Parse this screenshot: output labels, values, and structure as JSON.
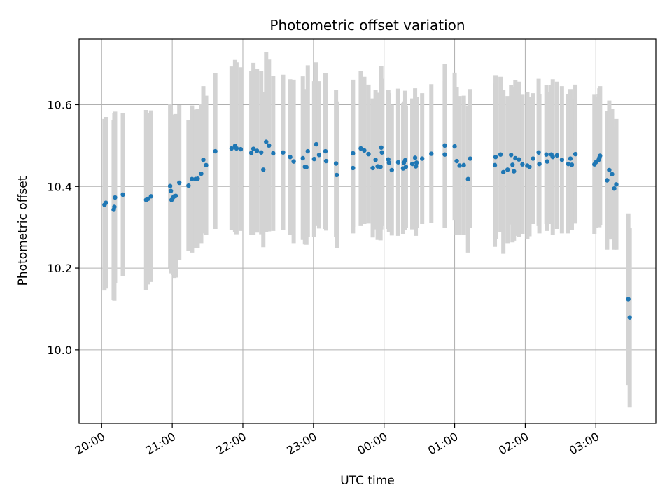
{
  "chart_data": {
    "type": "scatter",
    "title": "Photometric offset variation",
    "xlabel": "UTC time",
    "ylabel": "Photometric offset",
    "x_unit": "hours since 20:00 UTC",
    "xlim": [
      -0.32,
      7.85
    ],
    "ylim": [
      9.82,
      10.76
    ],
    "x_ticks": [
      0,
      1,
      2,
      3,
      4,
      5,
      6,
      7
    ],
    "x_tick_labels": [
      "20:00",
      "21:00",
      "22:00",
      "23:00",
      "00:00",
      "01:00",
      "02:00",
      "03:00"
    ],
    "y_ticks": [
      10.0,
      10.2,
      10.4,
      10.6
    ],
    "y_tick_labels": [
      "10.0",
      "10.2",
      "10.4",
      "10.6"
    ],
    "grid": true,
    "colors": {
      "points": "#1f77b4",
      "errorbars": "#d3d3d3",
      "grid": "#b0b0b0"
    },
    "series": [
      {
        "name": "offset",
        "x": [
          0.04,
          0.06,
          0.17,
          0.18,
          0.19,
          0.3,
          0.63,
          0.66,
          0.7,
          0.97,
          0.98,
          0.99,
          1.01,
          1.03,
          1.05,
          1.1,
          1.23,
          1.28,
          1.33,
          1.36,
          1.41,
          1.44,
          1.48,
          1.61,
          1.84,
          1.89,
          1.91,
          1.97,
          2.12,
          2.15,
          2.2,
          2.26,
          2.29,
          2.33,
          2.37,
          2.43,
          2.57,
          2.67,
          2.72,
          2.85,
          2.88,
          2.9,
          2.92,
          3.01,
          3.04,
          3.08,
          3.17,
          3.18,
          3.32,
          3.33,
          3.56,
          3.56,
          3.67,
          3.72,
          3.78,
          3.84,
          3.88,
          3.91,
          3.95,
          3.96,
          3.97,
          4.06,
          4.07,
          4.11,
          4.2,
          4.27,
          4.28,
          4.3,
          4.31,
          4.4,
          4.44,
          4.45,
          4.46,
          4.54,
          4.67,
          4.86,
          4.86,
          5.0,
          5.03,
          5.07,
          5.13,
          5.19,
          5.22,
          5.57,
          5.58,
          5.65,
          5.69,
          5.75,
          5.8,
          5.82,
          5.84,
          5.86,
          5.91,
          5.96,
          6.03,
          6.06,
          6.11,
          6.19,
          6.2,
          6.3,
          6.31,
          6.37,
          6.39,
          6.45,
          6.52,
          6.61,
          6.64,
          6.66,
          6.71,
          6.98,
          7.0,
          7.04,
          7.05,
          7.06,
          7.16,
          7.19,
          7.23,
          7.26,
          7.29,
          7.46,
          7.48
        ],
        "y": [
          10.355,
          10.36,
          10.343,
          10.35,
          10.373,
          10.38,
          10.367,
          10.37,
          10.376,
          10.401,
          10.389,
          10.367,
          10.373,
          10.376,
          10.377,
          10.409,
          10.402,
          10.418,
          10.418,
          10.419,
          10.431,
          10.465,
          10.452,
          10.486,
          10.493,
          10.499,
          10.493,
          10.491,
          10.482,
          10.492,
          10.487,
          10.483,
          10.441,
          10.509,
          10.5,
          10.481,
          10.483,
          10.472,
          10.461,
          10.469,
          10.448,
          10.447,
          10.486,
          10.467,
          10.503,
          10.477,
          10.486,
          10.462,
          10.456,
          10.428,
          10.445,
          10.481,
          10.493,
          10.488,
          10.479,
          10.445,
          10.465,
          10.449,
          10.448,
          10.495,
          10.483,
          10.466,
          10.458,
          10.44,
          10.459,
          10.444,
          10.458,
          10.464,
          10.448,
          10.455,
          10.47,
          10.449,
          10.458,
          10.468,
          10.48,
          10.5,
          10.478,
          10.498,
          10.462,
          10.451,
          10.452,
          10.418,
          10.468,
          10.452,
          10.472,
          10.478,
          10.435,
          10.441,
          10.477,
          10.453,
          10.437,
          10.469,
          10.466,
          10.454,
          10.451,
          10.448,
          10.468,
          10.483,
          10.455,
          10.478,
          10.461,
          10.478,
          10.472,
          10.476,
          10.465,
          10.455,
          10.468,
          10.453,
          10.479,
          10.454,
          10.459,
          10.465,
          10.47,
          10.475,
          10.415,
          10.44,
          10.43,
          10.395,
          10.405,
          10.124,
          10.079
        ],
        "error": [
          0.21,
          0.21,
          0.22,
          0.23,
          0.21,
          0.2,
          0.22,
          0.21,
          0.21,
          0.2,
          0.2,
          0.18,
          0.19,
          0.2,
          0.2,
          0.19,
          0.16,
          0.18,
          0.17,
          0.17,
          0.17,
          0.18,
          0.17,
          0.19,
          0.2,
          0.21,
          0.21,
          0.2,
          0.2,
          0.21,
          0.2,
          0.2,
          0.19,
          0.22,
          0.21,
          0.19,
          0.19,
          0.19,
          0.2,
          0.2,
          0.19,
          0.19,
          0.21,
          0.19,
          0.2,
          0.18,
          0.19,
          0.17,
          0.18,
          0.18,
          0.16,
          0.18,
          0.19,
          0.18,
          0.17,
          0.17,
          0.17,
          0.18,
          0.18,
          0.2,
          0.18,
          0.17,
          0.17,
          0.16,
          0.18,
          0.16,
          0.15,
          0.17,
          0.15,
          0.16,
          0.17,
          0.17,
          0.16,
          0.16,
          0.17,
          0.2,
          0.18,
          0.18,
          0.18,
          0.17,
          0.17,
          0.18,
          0.17,
          0.2,
          0.2,
          0.19,
          0.2,
          0.18,
          0.17,
          0.19,
          0.17,
          0.19,
          0.19,
          0.17,
          0.18,
          0.17,
          0.16,
          0.18,
          0.17,
          0.17,
          0.17,
          0.17,
          0.19,
          0.18,
          0.18,
          0.17,
          0.17,
          0.16,
          0.17,
          0.17,
          0.16,
          0.16,
          0.17,
          0.17,
          0.17,
          0.17,
          0.16,
          0.15,
          0.16,
          0.21,
          0.22
        ]
      }
    ]
  }
}
